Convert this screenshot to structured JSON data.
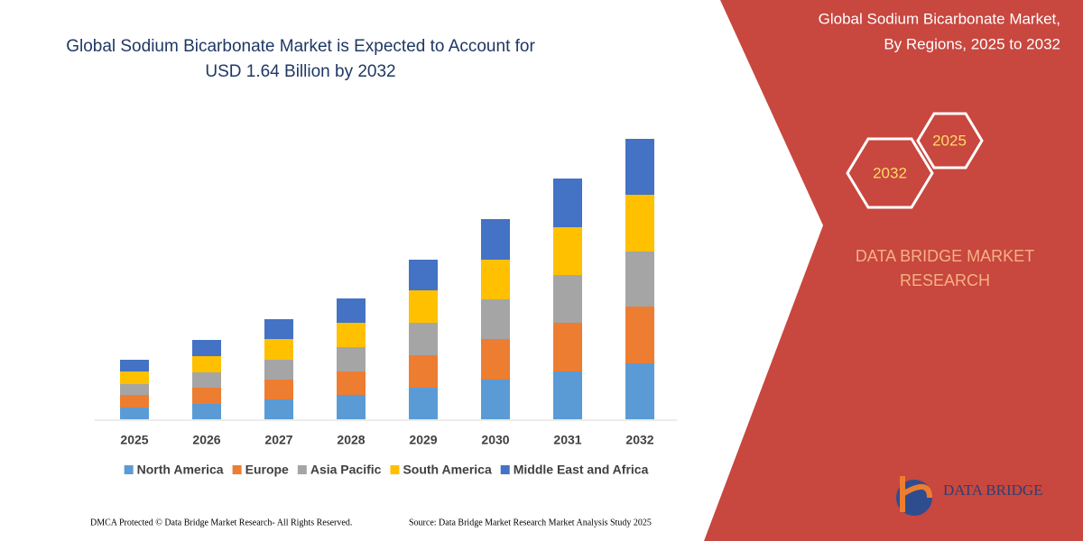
{
  "chart_data": {
    "type": "stacked_bar",
    "title": [
      "Global Sodium Bicarbonate Market is Expected to Account for",
      "USD 1.64 Billion by 2032"
    ],
    "categories": [
      "2025",
      "2026",
      "2027",
      "2028",
      "2029",
      "2030",
      "2031",
      "2032"
    ],
    "series": [
      {
        "name": "North America",
        "color": "#5b9bd5",
        "values": [
          13,
          17,
          22,
          27,
          35,
          44,
          53,
          62
        ]
      },
      {
        "name": "Europe",
        "color": "#ed7d31",
        "values": [
          14,
          18,
          22,
          26,
          36,
          45,
          54,
          63
        ]
      },
      {
        "name": "Asia Pacific",
        "color": "#a5a5a5",
        "values": [
          12,
          17,
          22,
          27,
          36,
          44,
          53,
          61
        ]
      },
      {
        "name": "South America",
        "color": "#ffc000",
        "values": [
          14,
          18,
          23,
          27,
          36,
          44,
          53,
          63
        ]
      },
      {
        "name": "Middle East and Africa",
        "color": "#4472c4",
        "values": [
          13,
          18,
          22,
          27,
          34,
          45,
          54,
          62
        ]
      }
    ],
    "ylim": [
      0,
      320
    ]
  },
  "panel": {
    "title": [
      "Global Sodium Bicarbonate Market,",
      "By Regions, 2025 to 2032"
    ],
    "hexagons": [
      "2025",
      "2032"
    ],
    "brand": [
      "DATA BRIDGE MARKET",
      "RESEARCH"
    ],
    "logo": "DATA BRIDGE"
  },
  "footer": {
    "left": "DMCA Protected © Data Bridge Market Research-  All Rights Reserved.",
    "right": "Source: Data Bridge Market Research  Market Analysis Study 2025"
  }
}
